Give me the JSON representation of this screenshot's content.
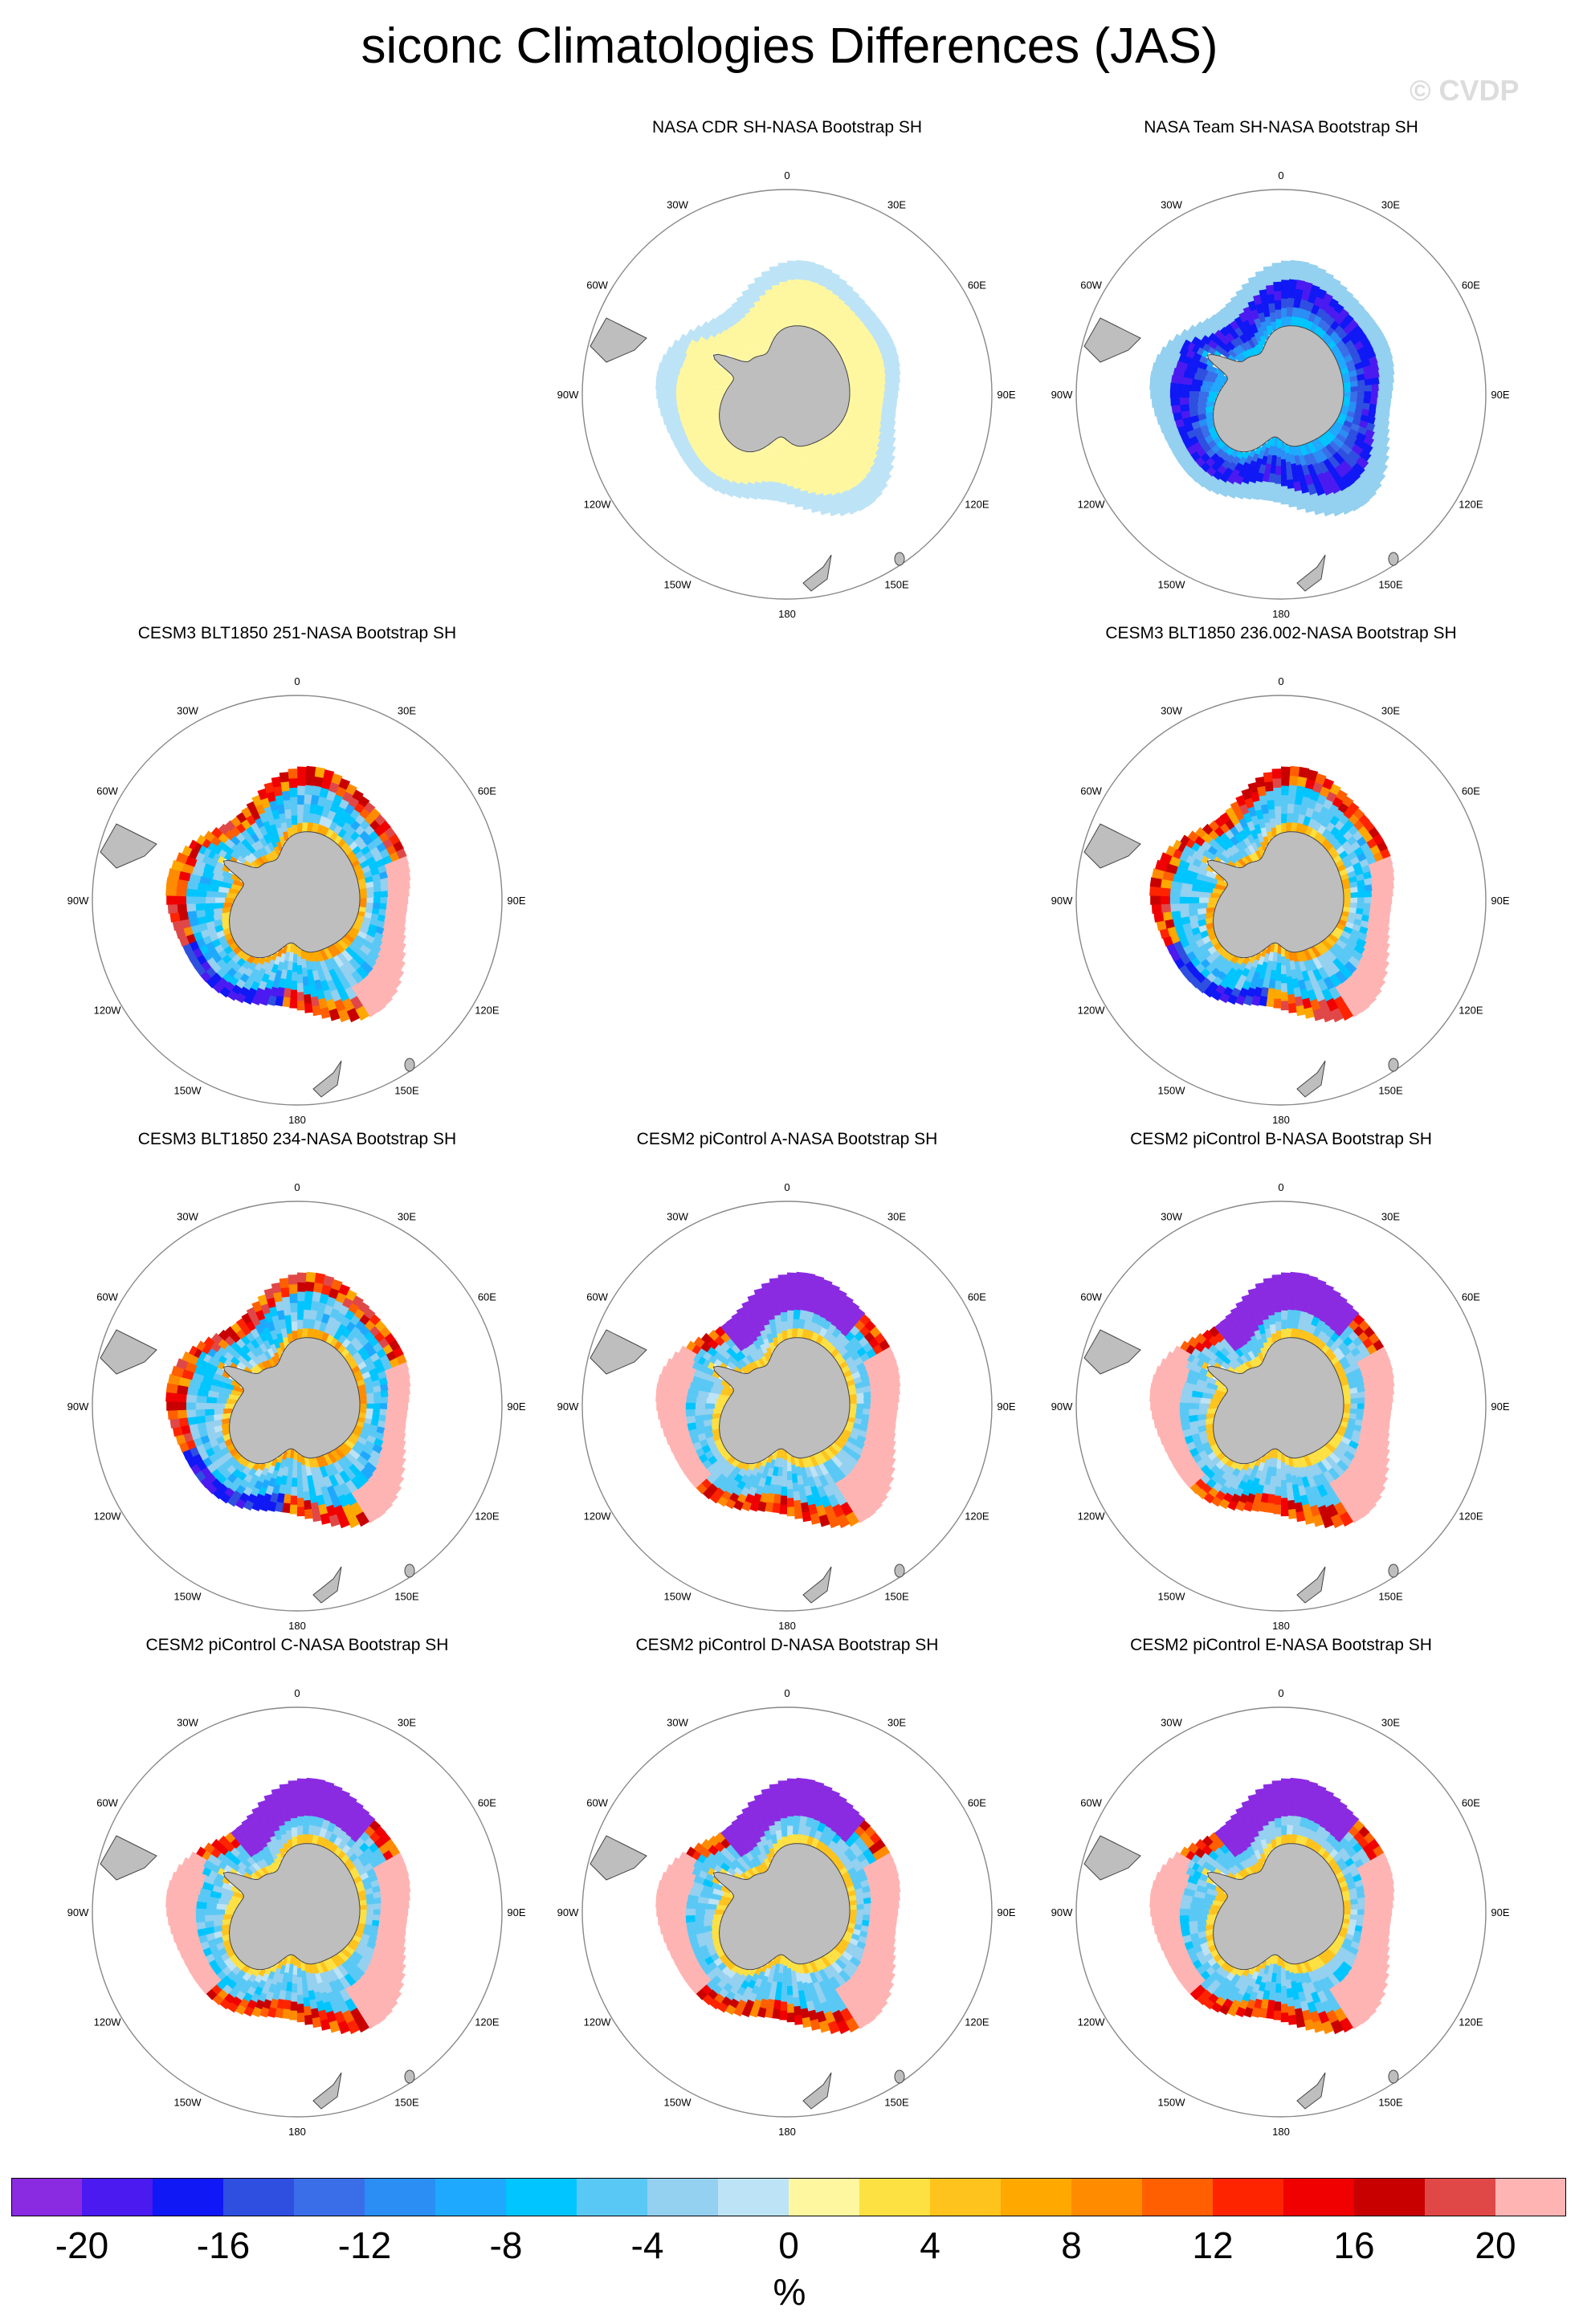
{
  "figure": {
    "title": "siconc Climatologies Differences (JAS)",
    "credit": "© CVDP",
    "unit": "%"
  },
  "longitude_labels": [
    "0",
    "30E",
    "60E",
    "90E",
    "120E",
    "150E",
    "180",
    "150W",
    "120W",
    "90W",
    "60W",
    "30W"
  ],
  "panels": [
    {
      "title": "NASA CDR SH-NASA Bootstrap SH",
      "pattern": "yellow-inner-lightblue-outer"
    },
    {
      "title": "NASA Team SH-NASA Bootstrap SH",
      "pattern": "blue-negative"
    },
    {
      "title": "CESM3 BLT1850 251-NASA Bootstrap SH",
      "pattern": "mixed-edge-positive"
    },
    {
      "title": "CESM3 BLT1850 236.002-NASA Bootstrap SH",
      "pattern": "mixed-edge-positive"
    },
    {
      "title": "CESM3 BLT1850 234-NASA Bootstrap SH",
      "pattern": "mixed-edge-positive"
    },
    {
      "title": "CESM2 piControl A-NASA Bootstrap SH",
      "pattern": "purple-atlantic-red-edge"
    },
    {
      "title": "CESM2 piControl B-NASA Bootstrap SH",
      "pattern": "purple-atlantic-red-edge"
    },
    {
      "title": "CESM2 piControl C-NASA Bootstrap SH",
      "pattern": "purple-atlantic-red-edge"
    },
    {
      "title": "CESM2 piControl D-NASA Bootstrap SH",
      "pattern": "purple-atlantic-red-edge"
    },
    {
      "title": "CESM2 piControl E-NASA Bootstrap SH",
      "pattern": "purple-atlantic-red-edge"
    }
  ],
  "colorbar": {
    "colors": [
      "#8a2be2",
      "#4b1af0",
      "#0f18f5",
      "#2f4fe0",
      "#3a6ee8",
      "#2a8ef5",
      "#1ea9ff",
      "#00c5ff",
      "#5ac8f5",
      "#94d0ef",
      "#bde3f6",
      "#fff7a0",
      "#fde042",
      "#fec31d",
      "#fea800",
      "#ff8c00",
      "#ff5f00",
      "#ff2400",
      "#f00000",
      "#c80000",
      "#e04848",
      "#ffb4b4"
    ],
    "tick_labels": [
      "-20",
      "-16",
      "-12",
      "-8",
      "-4",
      "0",
      "4",
      "8",
      "12",
      "16",
      "20"
    ],
    "min": -22,
    "max": 22
  }
}
